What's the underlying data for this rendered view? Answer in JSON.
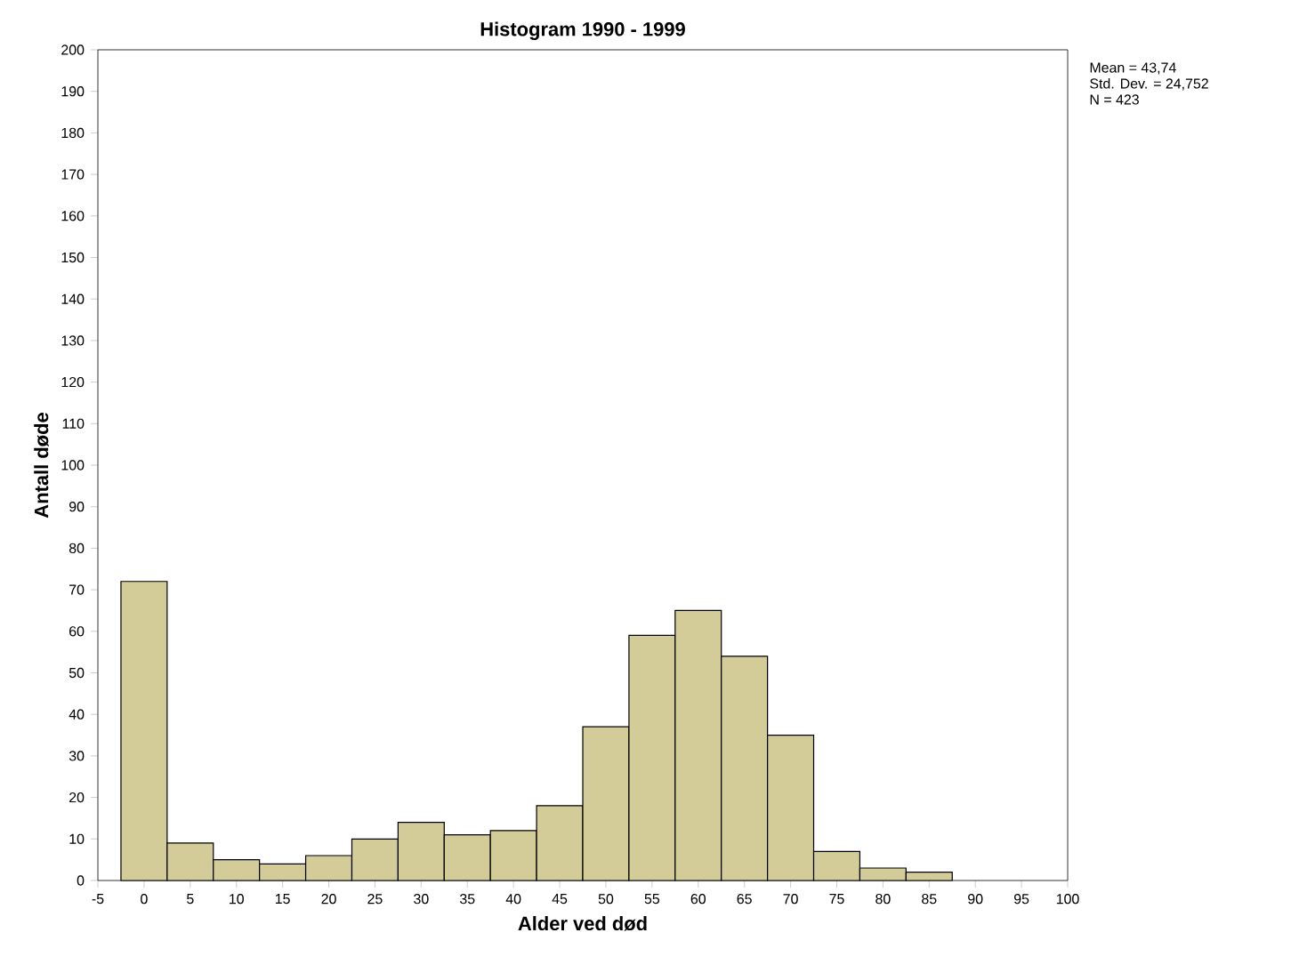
{
  "chart_data": {
    "type": "histogram",
    "title": "Histogram 1990 - 1999",
    "xlabel": "Alder ved død",
    "ylabel": "Antall døde",
    "bins": [
      -2.5,
      2.5,
      7.5,
      12.5,
      17.5,
      22.5,
      27.5,
      32.5,
      37.5,
      42.5,
      47.5,
      52.5,
      57.5,
      62.5,
      67.5,
      72.5,
      77.5,
      82.5,
      87.5
    ],
    "values": [
      72,
      9,
      5,
      4,
      6,
      10,
      14,
      11,
      12,
      18,
      37,
      59,
      65,
      54,
      35,
      7,
      3,
      2
    ],
    "color": "#d3cb98",
    "xlim": [
      -5,
      100
    ],
    "ylim": [
      0,
      200
    ],
    "xticks": [
      -5,
      0,
      5,
      10,
      15,
      20,
      25,
      30,
      35,
      40,
      45,
      50,
      55,
      60,
      65,
      70,
      75,
      80,
      85,
      90,
      95,
      100
    ],
    "yticks": [
      0,
      10,
      20,
      30,
      40,
      50,
      60,
      70,
      80,
      90,
      100,
      110,
      120,
      130,
      140,
      150,
      160,
      170,
      180,
      190,
      200
    ],
    "annotations": [
      "Mean = 43,74",
      "Std. Dev. = 24,752",
      "N = 423"
    ]
  }
}
